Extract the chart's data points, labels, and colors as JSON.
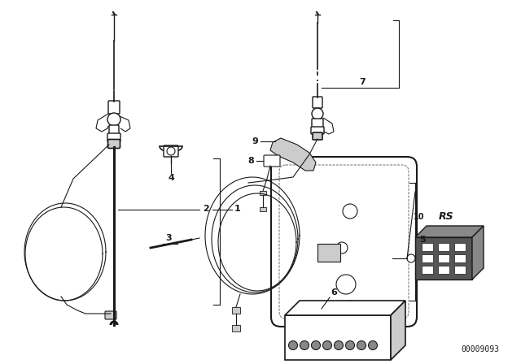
{
  "bg_color": "#ffffff",
  "line_color": "#1a1a1a",
  "dark_gray": "#555555",
  "med_gray": "#888888",
  "light_gray": "#cccccc",
  "part_number_text": "00009093"
}
